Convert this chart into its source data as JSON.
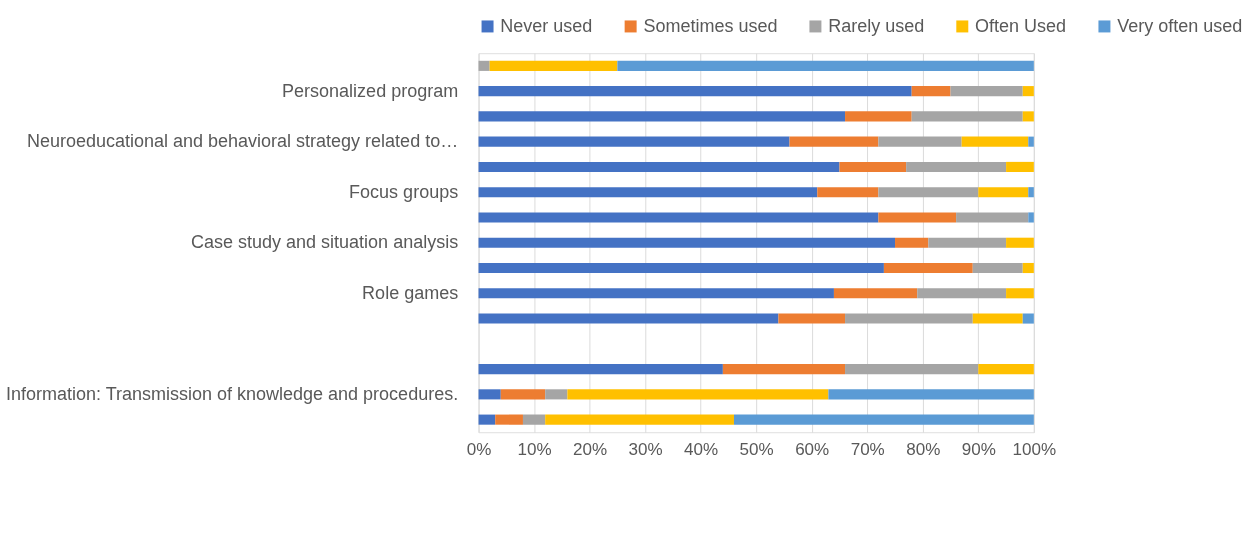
{
  "chart_data": {
    "type": "bar",
    "orientation": "horizontal",
    "stacked": true,
    "legend": "top",
    "grid": "x",
    "categories": [
      null,
      "Personalized program",
      null,
      "Neuroeducational and behavioral strategy related to…",
      null,
      "Focus groups",
      null,
      "Case study and situation analysis",
      null,
      "Role games",
      null,
      null,
      null,
      "Information: Transmission of knowledge and procedures.",
      null
    ],
    "xlim": [
      0,
      100
    ],
    "xticks": [
      {
        "value": 0,
        "label": "0%"
      },
      {
        "value": 10,
        "label": "10%"
      },
      {
        "value": 20,
        "label": "20%"
      },
      {
        "value": 30,
        "label": "30%"
      },
      {
        "value": 40,
        "label": "40%"
      },
      {
        "value": 50,
        "label": "50%"
      },
      {
        "value": 60,
        "label": "60%"
      },
      {
        "value": 70,
        "label": "70%"
      },
      {
        "value": 80,
        "label": "80%"
      },
      {
        "value": 90,
        "label": "90%"
      },
      {
        "value": 100,
        "label": "100%"
      }
    ],
    "series": [
      {
        "name": "Never used",
        "color": "#4472c4",
        "values": [
          0,
          78,
          66,
          56,
          65,
          61,
          72,
          75,
          73,
          64,
          54,
          null,
          44,
          4,
          3
        ]
      },
      {
        "name": "Sometimes used",
        "color": "#ed7d31",
        "values": [
          0,
          7,
          12,
          16,
          12,
          11,
          14,
          6,
          16,
          15,
          12,
          null,
          22,
          8,
          5
        ]
      },
      {
        "name": "Rarely used",
        "color": "#a5a5a5",
        "values": [
          2,
          13,
          20,
          15,
          18,
          18,
          13,
          14,
          9,
          16,
          23,
          null,
          24,
          4,
          4
        ]
      },
      {
        "name": "Often Used",
        "color": "#ffc000",
        "values": [
          23,
          2,
          2,
          12,
          5,
          9,
          0,
          5,
          2,
          5,
          9,
          null,
          10,
          47,
          34
        ]
      },
      {
        "name": "Very often used",
        "color": "#5b9bd5",
        "values": [
          75,
          0,
          0,
          1,
          0,
          1,
          1,
          0,
          0,
          0,
          2,
          null,
          0,
          37,
          54
        ]
      }
    ]
  }
}
